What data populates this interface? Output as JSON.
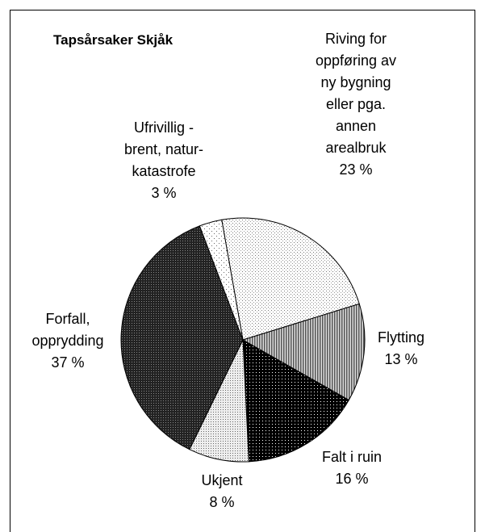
{
  "chart_data": {
    "type": "pie",
    "title": "Tapsårsaker Skjåk",
    "categories": [
      "Riving for oppføring av ny bygning eller pga. annen arealbruk",
      "Flytting",
      "Falt i ruin",
      "Ukjent",
      "Forfall, opprydding",
      "Ufrivillig - brent, natur-katastrofe"
    ],
    "values": [
      23,
      13,
      16,
      8,
      37,
      3
    ],
    "value_labels": [
      "23 %",
      "13 %",
      "16 %",
      "8 %",
      "37 %",
      "3 %"
    ]
  }
}
